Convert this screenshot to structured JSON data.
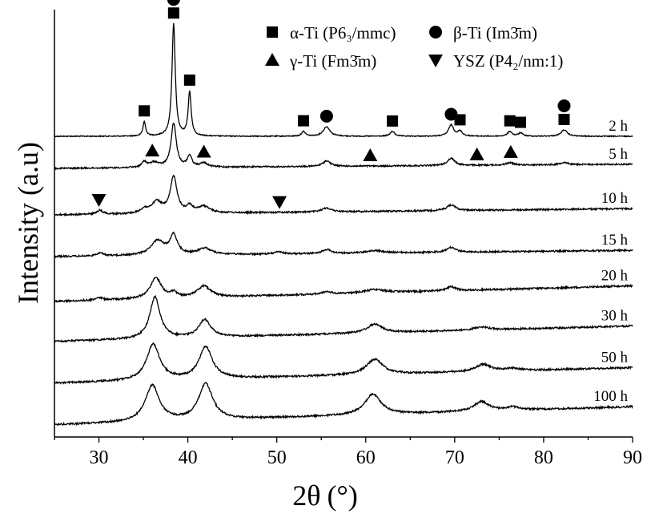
{
  "chart_data": {
    "type": "line",
    "title": "",
    "xlabel_main": "2θ",
    "xlabel_unit": "(°)",
    "ylabel": "Intensity (a.u)",
    "xlim": [
      25,
      90
    ],
    "xticks": [
      30,
      40,
      50,
      60,
      70,
      80,
      90
    ],
    "yticks_shown": false,
    "grid": false,
    "legend_position": "top-right",
    "legend": [
      {
        "marker": "square",
        "label": "α-Ti (P6₃/mmc)"
      },
      {
        "marker": "circle",
        "label": "β-Ti (Im3̄m)"
      },
      {
        "marker": "triangle-up",
        "label": "γ-Ti (Fm3̄m)"
      },
      {
        "marker": "triangle-down",
        "label": "YSZ (P4₂/nm:1)"
      }
    ],
    "series": [
      {
        "name": "2 h",
        "baseline": 170,
        "slope": 0.0,
        "noise": 0.6,
        "peaks": [
          [
            35.1,
            18,
            0.18
          ],
          [
            38.4,
            140,
            0.22
          ],
          [
            40.2,
            55,
            0.2
          ],
          [
            53.0,
            6,
            0.25
          ],
          [
            55.6,
            12,
            0.45
          ],
          [
            63.0,
            6,
            0.3
          ],
          [
            69.6,
            14,
            0.35
          ],
          [
            70.6,
            6,
            0.3
          ],
          [
            76.2,
            6,
            0.3
          ],
          [
            77.4,
            4,
            0.3
          ],
          [
            82.3,
            8,
            0.4
          ]
        ],
        "markers": [
          [
            35.1,
            "square"
          ],
          [
            38.4,
            "square"
          ],
          [
            38.4,
            "circle"
          ],
          [
            40.2,
            "square"
          ],
          [
            53.0,
            "square"
          ],
          [
            55.6,
            "circle"
          ],
          [
            63.0,
            "square"
          ],
          [
            69.6,
            "circle"
          ],
          [
            70.6,
            "square"
          ],
          [
            76.2,
            "square"
          ],
          [
            77.4,
            "square"
          ],
          [
            82.3,
            "square"
          ],
          [
            82.3,
            "circle"
          ]
        ]
      },
      {
        "name": "5 h",
        "baseline": 210,
        "slope": 0.08,
        "noise": 0.9,
        "peaks": [
          [
            35.1,
            7,
            0.3
          ],
          [
            36.2,
            6,
            0.6
          ],
          [
            38.4,
            55,
            0.35
          ],
          [
            40.2,
            14,
            0.3
          ],
          [
            41.8,
            5,
            0.5
          ],
          [
            55.6,
            7,
            0.5
          ],
          [
            69.6,
            9,
            0.5
          ],
          [
            76.2,
            3,
            0.5
          ],
          [
            82.3,
            3,
            0.5
          ]
        ],
        "markers": [
          [
            36.0,
            "triangle-up"
          ],
          [
            41.8,
            "triangle-up"
          ],
          [
            60.5,
            "triangle-up"
          ],
          [
            72.5,
            "triangle-up"
          ],
          [
            76.3,
            "triangle-up"
          ]
        ]
      },
      {
        "name": "10 h",
        "baseline": 268,
        "slope": 0.12,
        "noise": 1.0,
        "peaks": [
          [
            30.1,
            5,
            0.4
          ],
          [
            35.1,
            5,
            0.5
          ],
          [
            36.5,
            14,
            0.7
          ],
          [
            38.4,
            45,
            0.45
          ],
          [
            40.2,
            8,
            0.4
          ],
          [
            41.8,
            8,
            0.8
          ],
          [
            55.6,
            5,
            0.6
          ],
          [
            69.6,
            7,
            0.6
          ]
        ],
        "markers": [
          [
            30.0,
            "triangle-down"
          ],
          [
            50.3,
            "triangle-down"
          ]
        ]
      },
      {
        "name": "15 h",
        "baseline": 320,
        "slope": 0.12,
        "noise": 1.0,
        "peaks": [
          [
            30.1,
            4,
            0.4
          ],
          [
            36.6,
            18,
            0.9
          ],
          [
            38.4,
            24,
            0.5
          ],
          [
            41.9,
            8,
            0.9
          ],
          [
            50.2,
            3,
            0.5
          ],
          [
            55.6,
            5,
            0.6
          ],
          [
            61.0,
            3,
            1.2
          ],
          [
            69.6,
            6,
            0.6
          ]
        ],
        "markers": []
      },
      {
        "name": "20 h",
        "baseline": 376,
        "slope": 0.3,
        "noise": 1.1,
        "peaks": [
          [
            30.1,
            3,
            0.4
          ],
          [
            36.4,
            26,
            0.75
          ],
          [
            38.4,
            6,
            0.4
          ],
          [
            41.8,
            14,
            0.9
          ],
          [
            55.6,
            3,
            0.6
          ],
          [
            61.0,
            4,
            1.4
          ],
          [
            69.6,
            5,
            0.6
          ]
        ],
        "markers": []
      },
      {
        "name": "30 h",
        "baseline": 426,
        "slope": 0.3,
        "noise": 1.1,
        "peaks": [
          [
            36.3,
            52,
            0.7
          ],
          [
            41.9,
            22,
            0.8
          ],
          [
            61.0,
            11,
            1.0
          ],
          [
            73.0,
            4,
            1.0
          ]
        ],
        "markers": []
      },
      {
        "name": "50 h",
        "baseline": 478,
        "slope": 0.3,
        "noise": 1.1,
        "peaks": [
          [
            36.1,
            45,
            0.9
          ],
          [
            42.0,
            40,
            0.9
          ],
          [
            61.0,
            19,
            1.1
          ],
          [
            73.2,
            9,
            1.0
          ],
          [
            76.5,
            3,
            1.0
          ]
        ],
        "markers": []
      },
      {
        "name": "100 h",
        "baseline": 530,
        "slope": 0.35,
        "noise": 1.1,
        "peaks": [
          [
            36.0,
            45,
            0.95
          ],
          [
            42.0,
            45,
            0.95
          ],
          [
            60.8,
            26,
            1.1
          ],
          [
            73.0,
            12,
            1.0
          ],
          [
            76.5,
            4,
            1.0
          ]
        ],
        "markers": []
      }
    ]
  }
}
